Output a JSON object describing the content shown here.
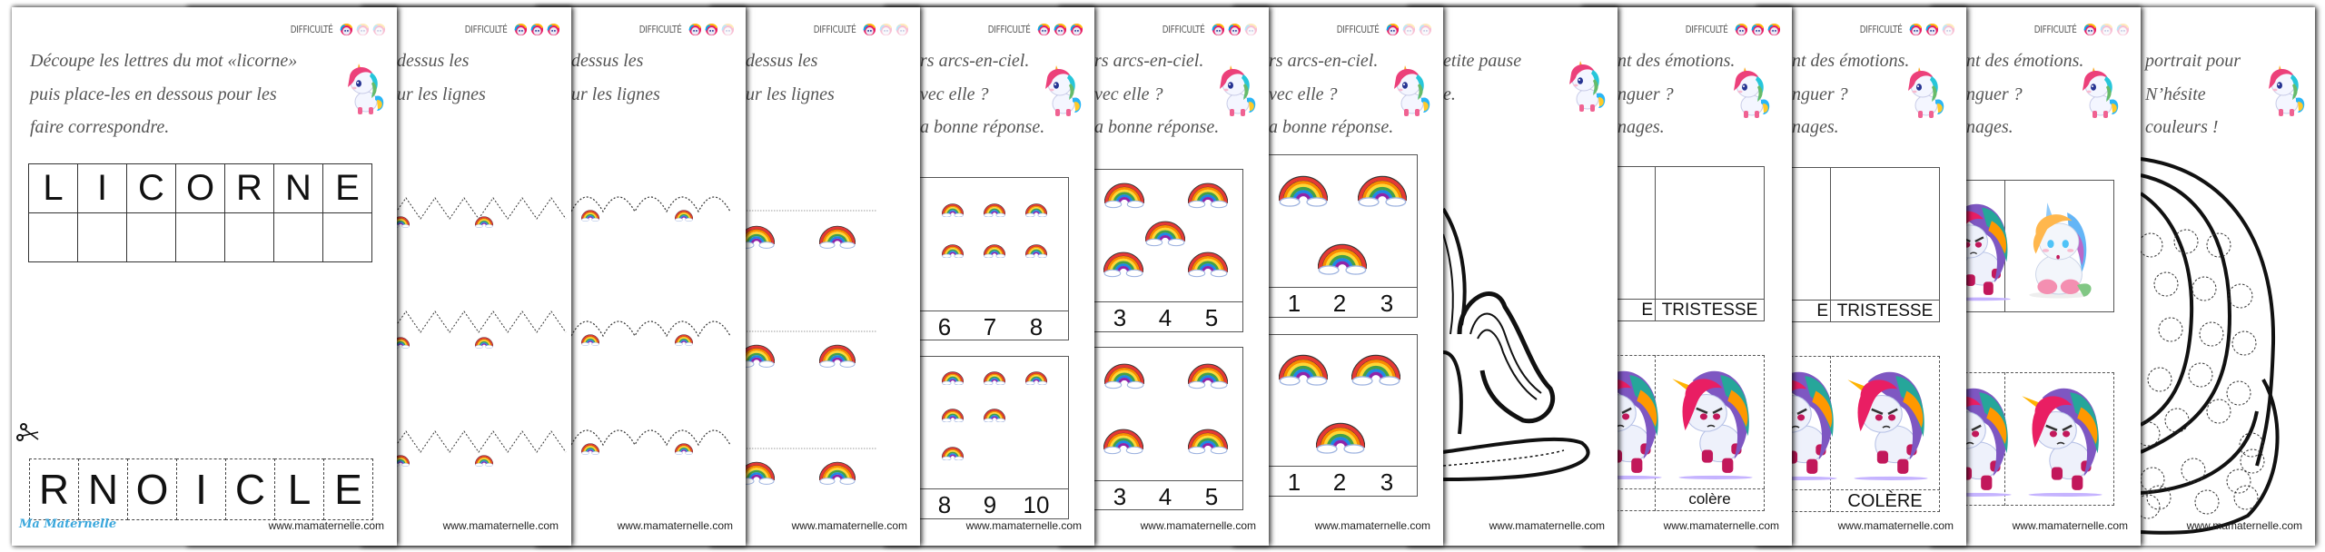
{
  "difficulty_label": "DIFFICULTÉ",
  "footer": "www.mamaternelle.com",
  "brand": "Ma Maternelle",
  "colors": {
    "brand_blue": "#3aa7dc",
    "text_gray": "#555555"
  },
  "pages": [
    {
      "difficulty": 1,
      "lines": [
        "Découpe les lettres du mot «licorne»",
        "puis place-les en dessous pour les",
        "faire correspondre."
      ],
      "word_letters": [
        "L",
        "I",
        "C",
        "O",
        "R",
        "N",
        "E"
      ],
      "scrambled_letters": [
        "R",
        "N",
        "O",
        "I",
        "C",
        "L",
        "E"
      ],
      "icon": "scissors-icon"
    },
    {
      "difficulty": 3,
      "lines": [
        "dessus les",
        "ur les lignes"
      ],
      "pattern": "zigzag"
    },
    {
      "difficulty": 2,
      "lines": [
        "dessus les",
        "ur les lignes"
      ],
      "pattern": "arches"
    },
    {
      "difficulty": 1,
      "lines": [
        "dessus les",
        "ur les lignes"
      ],
      "pattern": "straight"
    },
    {
      "difficulty": 3,
      "lines": [
        "rs arcs-en-ciel.",
        "vec elle ?",
        "a bonne réponse."
      ],
      "counts": [
        {
          "count": 6,
          "options": [
            "6",
            "7",
            "8"
          ]
        },
        {
          "count": 8,
          "options": [
            "8",
            "9",
            "10"
          ]
        }
      ]
    },
    {
      "difficulty": 2,
      "lines": [
        "rs arcs-en-ciel.",
        "vec elle ?",
        "a bonne réponse."
      ],
      "counts": [
        {
          "count": 5,
          "options": [
            "3",
            "4",
            "5"
          ]
        },
        {
          "count": 4,
          "options": [
            "3",
            "4",
            "5"
          ]
        }
      ]
    },
    {
      "difficulty": 1,
      "lines": [
        "rs arcs-en-ciel.",
        "vec elle ?",
        "a bonne réponse."
      ],
      "counts": [
        {
          "count": 3,
          "options": [
            "1",
            "2",
            "3"
          ]
        },
        {
          "count": 3,
          "options": [
            "1",
            "2",
            "3"
          ]
        }
      ]
    },
    {
      "difficulty": 0,
      "lines": [
        "etite pause",
        "e."
      ]
    },
    {
      "difficulty": 3,
      "lines": [
        "nt des émotions.",
        "nguer ?",
        "nages."
      ],
      "table_headers": [
        "E",
        "TRISTESSE"
      ],
      "card_label": "colère"
    },
    {
      "difficulty": 2,
      "lines": [
        "nt des émotions.",
        "nguer ?",
        "nages."
      ],
      "table_headers": [
        "E",
        "TRISTESSE"
      ],
      "card_label": "COLÈRE"
    },
    {
      "difficulty": 1,
      "lines": [
        "nt des émotions.",
        "nguer ?",
        "nages."
      ]
    },
    {
      "difficulty": 0,
      "lines": [
        "portrait pour",
        "N’hésite",
        "couleurs !"
      ]
    }
  ]
}
